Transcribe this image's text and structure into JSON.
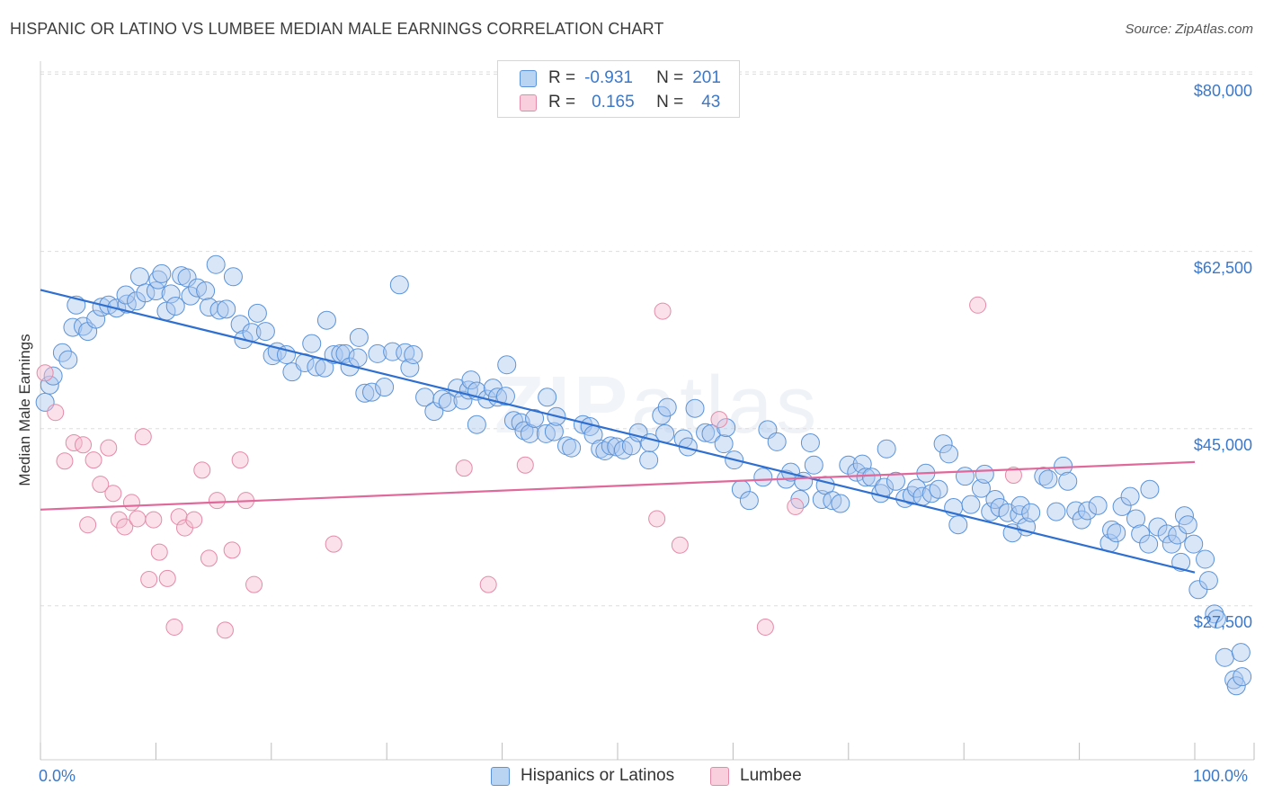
{
  "header": {
    "title": "HISPANIC OR LATINO VS LUMBEE MEDIAN MALE EARNINGS CORRELATION CHART",
    "source": "Source: ZipAtlas.com"
  },
  "watermark": {
    "bold": "ZIP",
    "light": "atlas"
  },
  "legend": {
    "rows": [
      {
        "r_label": "R =",
        "r_value": "-0.931",
        "n_label": "N =",
        "n_value": "201"
      },
      {
        "r_label": "R =",
        "r_value": "0.165",
        "n_label": "N =",
        "n_value": "43"
      }
    ]
  },
  "bottom_legend": {
    "series1": "Hispanics or Latinos",
    "series2": "Lumbee"
  },
  "colors": {
    "series1_fill": "#aac8ef",
    "series1_stroke": "#5b93d8",
    "series1_line": "#2f6fd0",
    "series2_fill": "#f5bdd0",
    "series2_stroke": "#e48aa8",
    "series2_line": "#e0689a",
    "axis_text": "#3b78c9",
    "grid": "#dddddd"
  },
  "chart_data": {
    "type": "scatter",
    "title": "HISPANIC OR LATINO VS LUMBEE MEDIAN MALE EARNINGS CORRELATION CHART",
    "xlabel": "",
    "ylabel": "Median Male Earnings",
    "xlim": [
      0,
      100
    ],
    "ylim": [
      12300,
      82000
    ],
    "x_tick_labels": [
      "0.0%",
      "100.0%"
    ],
    "y_ticks": [
      {
        "value": 80000,
        "label": "$80,000"
      },
      {
        "value": 62500,
        "label": "$62,500"
      },
      {
        "value": 45000,
        "label": "$45,000"
      },
      {
        "value": 27500,
        "label": "$27,500"
      }
    ],
    "grid": "horizontal dashed",
    "legend_position": "top-center",
    "series": [
      {
        "name": "Hispanics or Latinos",
        "r": -0.931,
        "n": 201,
        "trend": {
          "x": [
            0,
            100
          ],
          "y": [
            58700,
            30800
          ]
        },
        "points": [
          [
            0.4,
            47.6
          ],
          [
            0.8,
            49.3
          ],
          [
            1.1,
            50.2
          ],
          [
            1.9,
            52.5
          ],
          [
            2.4,
            51.8
          ],
          [
            2.8,
            55.0
          ],
          [
            3.1,
            57.2
          ],
          [
            3.7,
            55.1
          ],
          [
            4.1,
            54.6
          ],
          [
            4.8,
            55.8
          ],
          [
            5.3,
            57.0
          ],
          [
            5.9,
            57.2
          ],
          [
            6.6,
            56.9
          ],
          [
            7.5,
            57.3
          ],
          [
            7.4,
            58.2
          ],
          [
            8.3,
            57.6
          ],
          [
            8.6,
            60.0
          ],
          [
            9.1,
            58.4
          ],
          [
            10.0,
            58.6
          ],
          [
            10.2,
            59.7
          ],
          [
            10.5,
            60.3
          ],
          [
            10.9,
            56.6
          ],
          [
            11.3,
            58.3
          ],
          [
            11.7,
            57.1
          ],
          [
            12.2,
            60.1
          ],
          [
            12.7,
            59.9
          ],
          [
            13.0,
            58.1
          ],
          [
            13.6,
            58.9
          ],
          [
            14.3,
            58.6
          ],
          [
            14.6,
            57.0
          ],
          [
            15.2,
            61.2
          ],
          [
            15.5,
            56.7
          ],
          [
            16.1,
            56.8
          ],
          [
            16.7,
            60.0
          ],
          [
            17.3,
            55.3
          ],
          [
            17.6,
            53.8
          ],
          [
            18.3,
            54.5
          ],
          [
            18.8,
            56.4
          ],
          [
            19.5,
            54.6
          ],
          [
            20.1,
            52.2
          ],
          [
            20.5,
            52.6
          ],
          [
            21.3,
            52.3
          ],
          [
            21.8,
            50.6
          ],
          [
            22.9,
            51.5
          ],
          [
            23.5,
            53.4
          ],
          [
            23.9,
            51.1
          ],
          [
            24.6,
            51.0
          ],
          [
            24.8,
            55.7
          ],
          [
            25.4,
            52.3
          ],
          [
            26.0,
            52.4
          ],
          [
            26.4,
            52.4
          ],
          [
            26.8,
            51.1
          ],
          [
            27.6,
            54.0
          ],
          [
            27.5,
            52.0
          ],
          [
            28.1,
            48.5
          ],
          [
            28.7,
            48.6
          ],
          [
            29.2,
            52.4
          ],
          [
            29.8,
            49.1
          ],
          [
            30.5,
            52.6
          ],
          [
            31.6,
            52.5
          ],
          [
            32.0,
            51.0
          ],
          [
            32.3,
            52.3
          ],
          [
            31.1,
            59.2
          ],
          [
            33.3,
            48.1
          ],
          [
            34.1,
            46.7
          ],
          [
            34.8,
            47.9
          ],
          [
            35.3,
            47.6
          ],
          [
            36.1,
            49.0
          ],
          [
            36.6,
            47.8
          ],
          [
            37.1,
            48.8
          ],
          [
            37.3,
            49.8
          ],
          [
            37.8,
            48.7
          ],
          [
            37.8,
            45.4
          ],
          [
            38.7,
            47.9
          ],
          [
            39.2,
            49.0
          ],
          [
            39.6,
            48.1
          ],
          [
            40.4,
            51.3
          ],
          [
            40.3,
            48.2
          ],
          [
            41.0,
            45.8
          ],
          [
            41.6,
            45.6
          ],
          [
            41.9,
            44.8
          ],
          [
            42.4,
            44.5
          ],
          [
            42.8,
            46.0
          ],
          [
            43.8,
            44.5
          ],
          [
            43.9,
            48.1
          ],
          [
            44.5,
            44.7
          ],
          [
            44.7,
            46.2
          ],
          [
            45.6,
            43.3
          ],
          [
            46.0,
            43.1
          ],
          [
            47.0,
            45.4
          ],
          [
            47.6,
            45.2
          ],
          [
            47.9,
            44.4
          ],
          [
            48.5,
            43.0
          ],
          [
            48.9,
            42.8
          ],
          [
            49.4,
            43.3
          ],
          [
            49.9,
            43.2
          ],
          [
            50.5,
            42.9
          ],
          [
            51.2,
            43.3
          ],
          [
            51.8,
            44.6
          ],
          [
            52.7,
            41.9
          ],
          [
            52.8,
            43.6
          ],
          [
            53.8,
            46.3
          ],
          [
            54.1,
            44.5
          ],
          [
            54.3,
            47.1
          ],
          [
            55.7,
            44.0
          ],
          [
            56.1,
            43.2
          ],
          [
            56.7,
            47.0
          ],
          [
            57.6,
            44.6
          ],
          [
            58.1,
            44.5
          ],
          [
            59.2,
            43.5
          ],
          [
            59.4,
            45.1
          ],
          [
            60.1,
            41.9
          ],
          [
            60.7,
            39.0
          ],
          [
            61.4,
            37.9
          ],
          [
            62.6,
            40.2
          ],
          [
            63.0,
            44.9
          ],
          [
            63.8,
            43.7
          ],
          [
            64.6,
            40.0
          ],
          [
            65.0,
            40.7
          ],
          [
            65.8,
            38.0
          ],
          [
            66.1,
            39.8
          ],
          [
            66.7,
            43.6
          ],
          [
            67.0,
            41.4
          ],
          [
            67.7,
            38.0
          ],
          [
            68.0,
            39.4
          ],
          [
            68.6,
            37.9
          ],
          [
            69.3,
            37.6
          ],
          [
            70.0,
            41.4
          ],
          [
            70.7,
            40.7
          ],
          [
            71.2,
            41.5
          ],
          [
            71.5,
            40.2
          ],
          [
            72.0,
            40.2
          ],
          [
            72.8,
            38.6
          ],
          [
            73.1,
            39.2
          ],
          [
            73.3,
            43.0
          ],
          [
            74.1,
            39.8
          ],
          [
            74.9,
            38.1
          ],
          [
            75.5,
            38.4
          ],
          [
            75.9,
            39.1
          ],
          [
            76.4,
            38.3
          ],
          [
            76.7,
            40.6
          ],
          [
            77.2,
            38.6
          ],
          [
            77.8,
            39.0
          ],
          [
            78.2,
            43.5
          ],
          [
            78.7,
            42.5
          ],
          [
            79.1,
            37.2
          ],
          [
            79.5,
            35.5
          ],
          [
            80.1,
            40.3
          ],
          [
            80.6,
            37.5
          ],
          [
            81.5,
            39.1
          ],
          [
            81.8,
            40.5
          ],
          [
            82.3,
            36.8
          ],
          [
            82.7,
            38.0
          ],
          [
            83.1,
            37.2
          ],
          [
            83.8,
            36.7
          ],
          [
            84.2,
            34.7
          ],
          [
            84.8,
            36.5
          ],
          [
            84.9,
            37.4
          ],
          [
            85.4,
            35.3
          ],
          [
            85.8,
            36.7
          ],
          [
            86.9,
            40.3
          ],
          [
            87.3,
            40.0
          ],
          [
            88.0,
            36.8
          ],
          [
            88.6,
            41.3
          ],
          [
            89.0,
            39.8
          ],
          [
            89.7,
            36.9
          ],
          [
            90.2,
            36.0
          ],
          [
            90.7,
            36.9
          ],
          [
            91.6,
            37.4
          ],
          [
            92.6,
            33.7
          ],
          [
            92.8,
            35.0
          ],
          [
            93.2,
            34.7
          ],
          [
            93.7,
            37.3
          ],
          [
            94.4,
            38.3
          ],
          [
            94.9,
            36.1
          ],
          [
            95.3,
            34.6
          ],
          [
            96.0,
            33.6
          ],
          [
            96.1,
            39.0
          ],
          [
            96.8,
            35.3
          ],
          [
            97.6,
            34.6
          ],
          [
            98.0,
            33.6
          ],
          [
            98.5,
            34.5
          ],
          [
            98.8,
            31.8
          ],
          [
            99.1,
            36.4
          ],
          [
            99.4,
            35.5
          ],
          [
            99.9,
            33.6
          ],
          [
            100.3,
            29.1
          ],
          [
            100.9,
            32.1
          ],
          [
            101.2,
            30.0
          ],
          [
            101.7,
            26.7
          ],
          [
            101.9,
            26.2
          ],
          [
            102.6,
            22.4
          ],
          [
            103.4,
            20.2
          ],
          [
            103.6,
            19.6
          ],
          [
            104.0,
            22.9
          ],
          [
            104.1,
            20.5
          ]
        ]
      },
      {
        "name": "Lumbee",
        "r": 0.165,
        "n": 43,
        "trend": {
          "x": [
            0,
            100
          ],
          "y": [
            37000,
            41700
          ]
        },
        "points": [
          [
            0.4,
            50.5
          ],
          [
            1.3,
            46.6
          ],
          [
            2.1,
            41.8
          ],
          [
            2.9,
            43.6
          ],
          [
            3.7,
            43.4
          ],
          [
            4.1,
            35.5
          ],
          [
            4.6,
            41.9
          ],
          [
            5.2,
            39.5
          ],
          [
            5.9,
            43.1
          ],
          [
            6.3,
            38.6
          ],
          [
            6.8,
            36.0
          ],
          [
            7.3,
            35.3
          ],
          [
            7.9,
            37.7
          ],
          [
            8.4,
            36.1
          ],
          [
            8.9,
            44.2
          ],
          [
            9.4,
            30.1
          ],
          [
            9.8,
            36.0
          ],
          [
            10.3,
            32.8
          ],
          [
            11.0,
            30.2
          ],
          [
            11.6,
            25.4
          ],
          [
            12.0,
            36.3
          ],
          [
            12.5,
            35.2
          ],
          [
            13.3,
            36.0
          ],
          [
            14.0,
            40.9
          ],
          [
            14.6,
            32.2
          ],
          [
            15.3,
            37.9
          ],
          [
            16.0,
            25.1
          ],
          [
            16.6,
            33.0
          ],
          [
            17.3,
            41.9
          ],
          [
            17.8,
            37.9
          ],
          [
            18.5,
            29.6
          ],
          [
            25.4,
            33.6
          ],
          [
            36.7,
            41.1
          ],
          [
            38.8,
            29.6
          ],
          [
            42.0,
            41.4
          ],
          [
            53.4,
            36.1
          ],
          [
            53.9,
            56.6
          ],
          [
            55.4,
            33.5
          ],
          [
            58.8,
            45.9
          ],
          [
            62.8,
            25.4
          ],
          [
            65.4,
            37.3
          ],
          [
            81.2,
            57.2
          ],
          [
            84.3,
            40.4
          ]
        ]
      }
    ]
  }
}
